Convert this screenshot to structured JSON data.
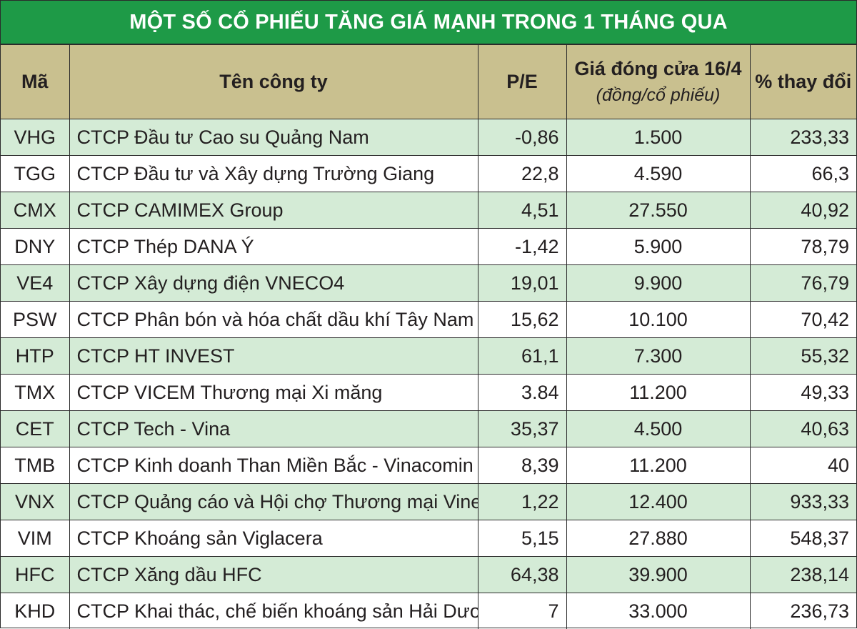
{
  "title": "MỘT SỐ CỔ PHIẾU TĂNG GIÁ MẠNH TRONG 1 THÁNG QUA",
  "colors": {
    "title_bg": "#1e9a47",
    "header_bg": "#c9c08f",
    "alt_row_bg": "#d4ebd6"
  },
  "headers": {
    "code": "Mã",
    "company": "Tên công ty",
    "pe": "P/E",
    "price": "Giá đóng cửa 16/4",
    "price_unit": "(đồng/cổ phiếu)",
    "change": "% thay đổi"
  },
  "rows": [
    {
      "code": "VHG",
      "company": "CTCP Đầu tư Cao su Quảng Nam",
      "pe": "-0,86",
      "price": "1.500",
      "change": "233,33"
    },
    {
      "code": "TGG",
      "company": "CTCP Đầu tư và Xây dựng Trường Giang",
      "pe": "22,8",
      "price": "4.590",
      "change": "66,3"
    },
    {
      "code": "CMX",
      "company": "CTCP CAMIMEX Group",
      "pe": "4,51",
      "price": "27.550",
      "change": "40,92"
    },
    {
      "code": "DNY",
      "company": "CTCP Thép DANA Ý",
      "pe": "-1,42",
      "price": "5.900",
      "change": "78,79"
    },
    {
      "code": "VE4",
      "company": "CTCP Xây dựng điện VNECO4",
      "pe": "19,01",
      "price": "9.900",
      "change": "76,79"
    },
    {
      "code": "PSW",
      "company": "CTCP Phân bón và hóa chất dầu khí Tây Nam Bộ",
      "pe": "15,62",
      "price": "10.100",
      "change": "70,42"
    },
    {
      "code": "HTP",
      "company": "CTCP HT INVEST",
      "pe": "61,1",
      "price": "7.300",
      "change": "55,32"
    },
    {
      "code": "TMX",
      "company": "CTCP VICEM Thương mại Xi măng",
      "pe": "3.84",
      "price": "11.200",
      "change": "49,33"
    },
    {
      "code": "CET",
      "company": "CTCP Tech - Vina",
      "pe": "35,37",
      "price": "4.500",
      "change": "40,63"
    },
    {
      "code": "TMB",
      "company": "CTCP Kinh doanh Than Miền Bắc - Vinacomin",
      "pe": "8,39",
      "price": "11.200",
      "change": "40"
    },
    {
      "code": "VNX",
      "company": "CTCP Quảng cáo và Hội chợ Thương mại Vinexad",
      "pe": "1,22",
      "price": "12.400",
      "change": "933,33"
    },
    {
      "code": "VIM",
      "company": "CTCP Khoáng sản Viglacera",
      "pe": "5,15",
      "price": "27.880",
      "change": "548,37"
    },
    {
      "code": "HFC",
      "company": "CTCP Xăng dầu HFC",
      "pe": "64,38",
      "price": "39.900",
      "change": "238,14"
    },
    {
      "code": "KHD",
      "company": "CTCP Khai thác, chế biến khoáng sản Hải Dương",
      "pe": "7",
      "price": "33.000",
      "change": "236,73"
    }
  ]
}
